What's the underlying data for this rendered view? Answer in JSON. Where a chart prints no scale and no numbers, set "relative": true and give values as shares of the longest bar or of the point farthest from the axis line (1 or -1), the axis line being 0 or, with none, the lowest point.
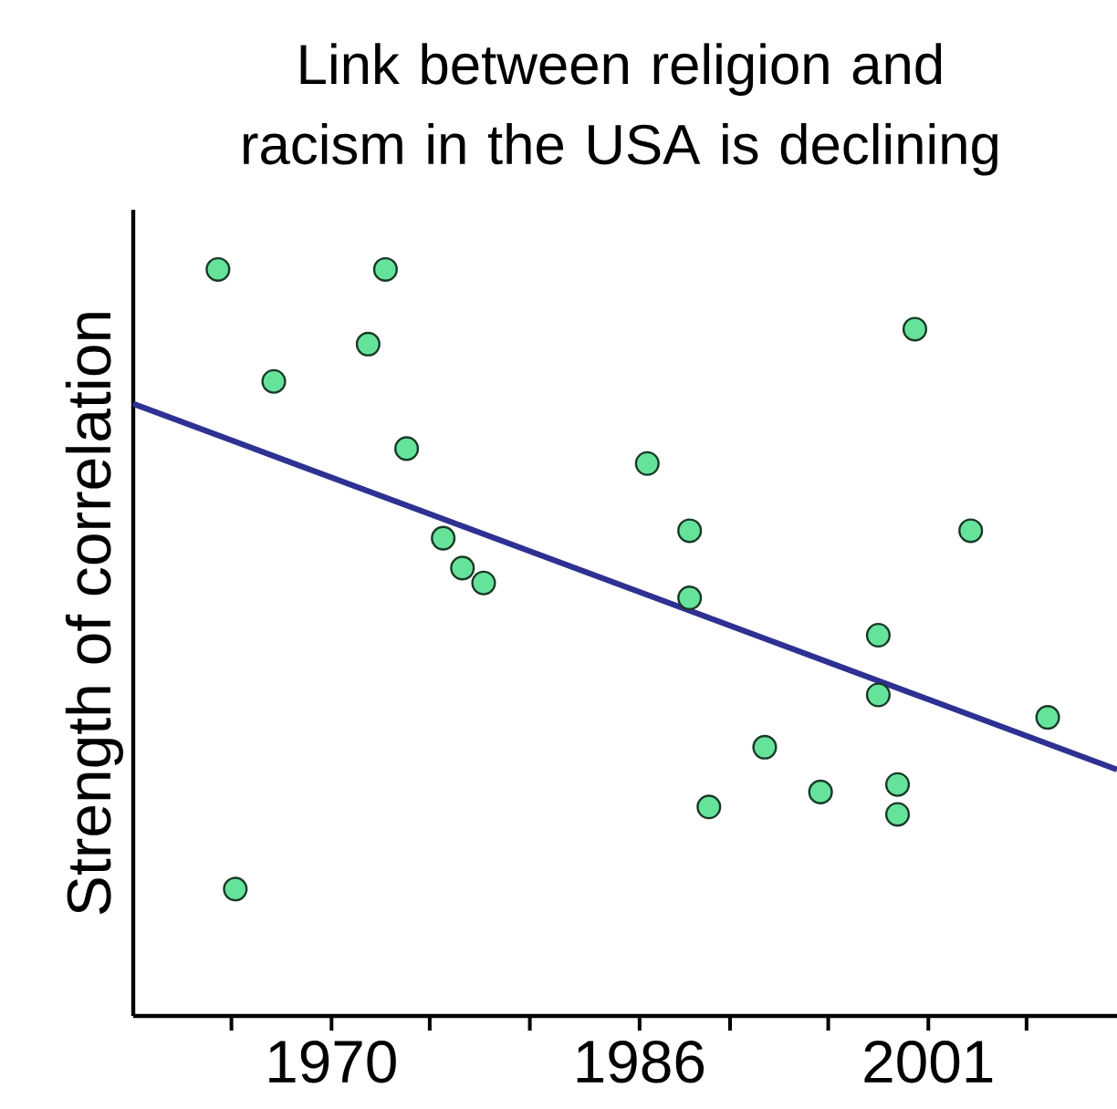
{
  "chart_data": {
    "type": "scatter",
    "title": "Link between religion and racism in the USA is declining",
    "ylabel": "Strength of correlation",
    "relative": true,
    "marker": "circle",
    "grid": false,
    "legend": false,
    "xlim": [
      1959.7,
      2010.8
    ],
    "xticks": [
      {
        "value": 1964.8,
        "label": null
      },
      1970,
      {
        "value": 1975.1,
        "label": null
      },
      {
        "value": 1980.3,
        "label": null
      },
      1986,
      {
        "value": 1990.7,
        "label": null
      },
      {
        "value": 1995.8,
        "label": null
      },
      2001,
      {
        "value": 2006.1,
        "label": null
      }
    ],
    "series": [
      {
        "color": "#66e39b",
        "x": [
          1964.1,
          1972.8,
          1971.9,
          1967.0,
          1973.9,
          1986.4,
          1975.8,
          1976.8,
          1977.9,
          1965.0,
          2000.3,
          1988.6,
          2003.2,
          1988.6,
          1998.4,
          1998.4,
          2007.2,
          1992.5,
          1995.4,
          1999.4,
          1989.6,
          1999.4
        ],
        "values": [
          1.0,
          1.0,
          0.9,
          0.85,
          0.76,
          0.74,
          0.64,
          0.6,
          0.58,
          0.17,
          0.92,
          0.65,
          0.65,
          0.56,
          0.51,
          0.43,
          0.4,
          0.36,
          0.3,
          0.31,
          0.28,
          0.27
        ]
      },
      {
        "type": "line",
        "marker": "none",
        "color": "#2e3192",
        "x": [
          1959.7,
          2010.8
        ],
        "values": [
          0.82,
          0.33
        ]
      }
    ]
  }
}
